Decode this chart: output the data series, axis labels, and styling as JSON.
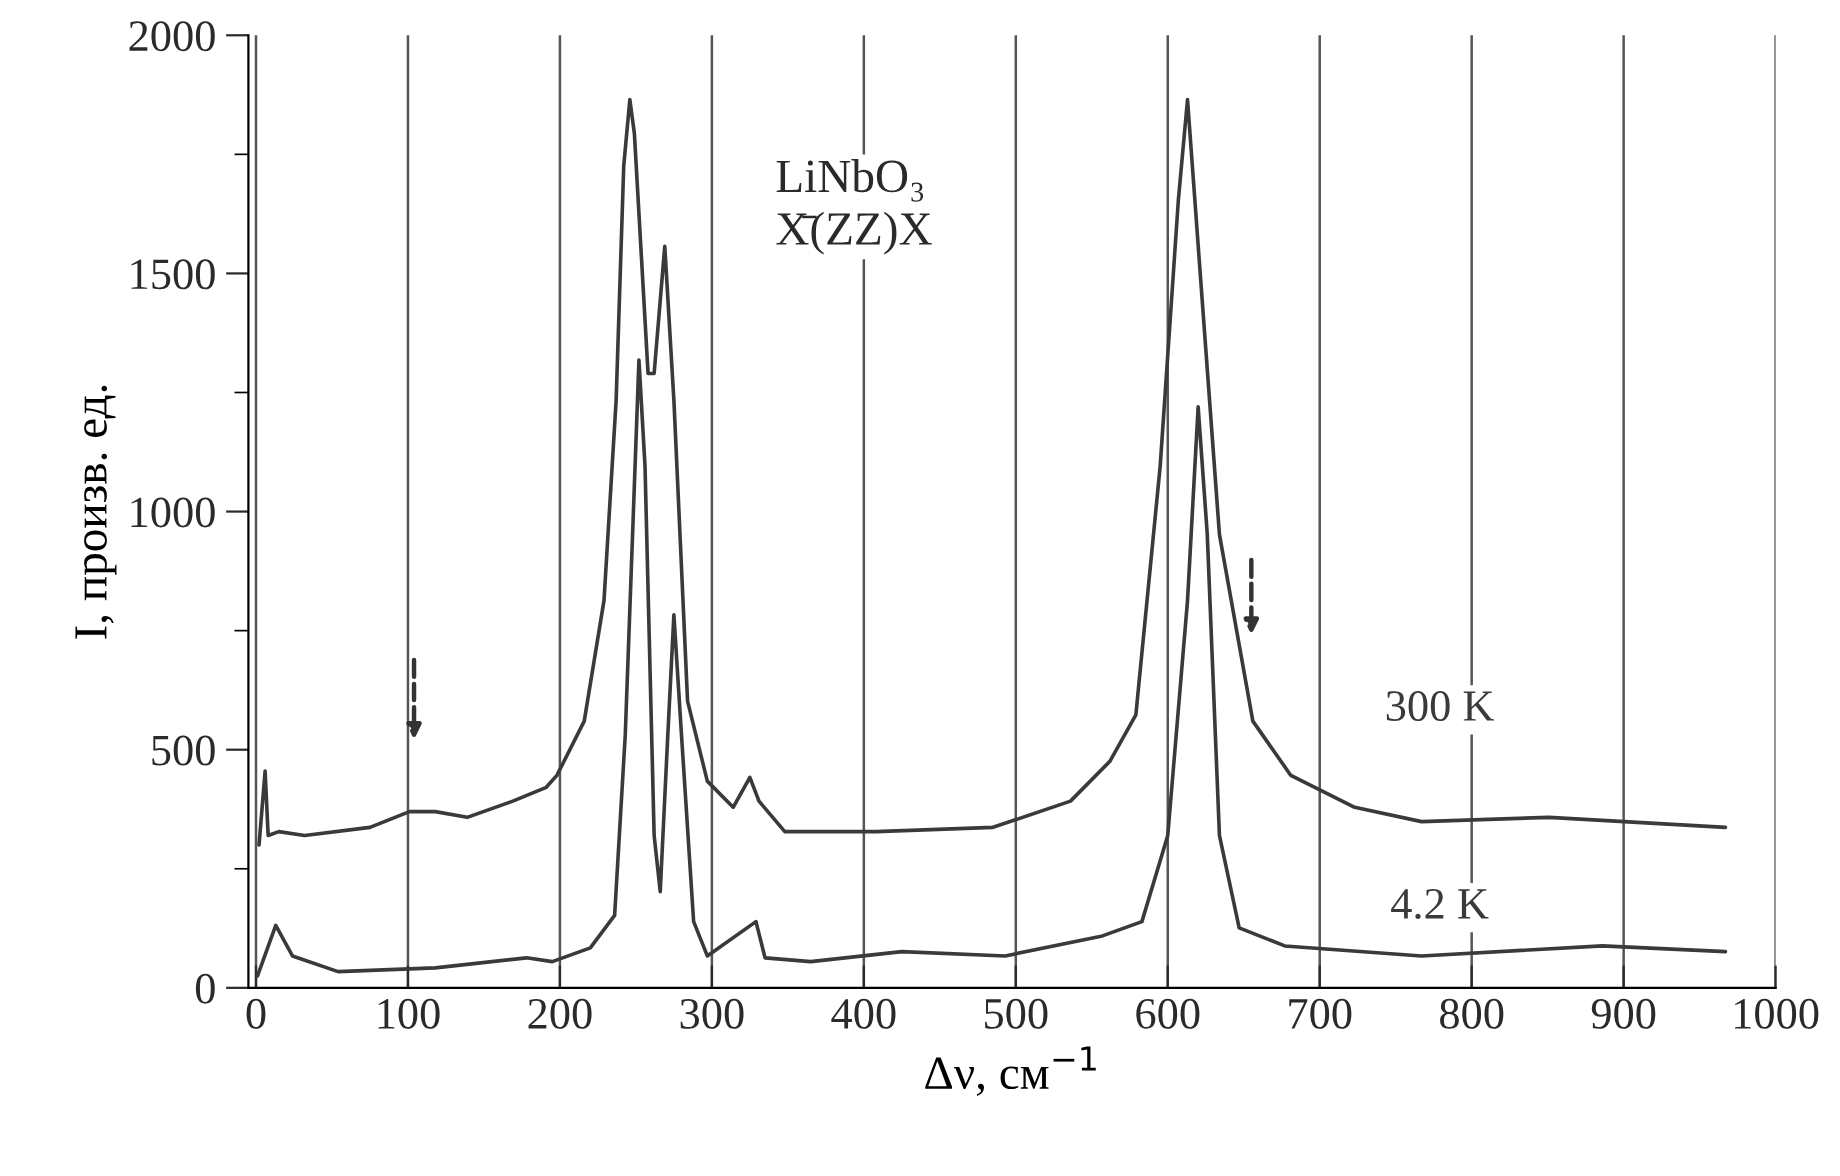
{
  "chart_data": {
    "type": "line",
    "xlabel": "Δν, см$^{−1}$",
    "ylabel": "I, произв. ед.",
    "annotations": [
      "LiNbO₃\nX̄(ZZ)X"
    ],
    "xlim": [
      -5,
      1000
    ],
    "ylim": [
      0,
      2000
    ],
    "xticks": [
      0,
      100,
      200,
      300,
      400,
      500,
      600,
      700,
      800,
      900,
      1000
    ],
    "yticks": [
      0,
      {
        "value": 250,
        "label": null
      },
      500,
      {
        "value": 750,
        "label": null
      },
      1000,
      {
        "value": 1250,
        "label": null
      },
      1500,
      {
        "value": 1750,
        "label": null
      },
      2000
    ],
    "grid": "x",
    "line_style": "solid",
    "marker": "none",
    "series": [
      {
        "name": "300 K",
        "color": "#3a3a3a",
        "x": [
          2,
          6,
          8,
          15,
          32,
          75,
          101,
          118,
          139,
          169,
          191,
          198,
          216,
          229,
          237,
          242,
          246,
          249,
          258,
          262,
          269,
          275,
          284,
          297,
          314,
          325,
          331,
          348,
          408,
          485,
          536,
          562,
          579,
          595,
          607,
          613,
          621,
          634,
          656,
          681,
          723,
          767,
          851,
          967
        ],
        "values": [
          300,
          455,
          320,
          328,
          320,
          337,
          370,
          370,
          358,
          392,
          421,
          446,
          560,
          813,
          1234,
          1726,
          1865,
          1794,
          1290,
          1290,
          1557,
          1234,
          602,
          434,
          379,
          442,
          392,
          328,
          328,
          337,
          392,
          476,
          573,
          1095,
          1655,
          1865,
          1516,
          952,
          560,
          446,
          379,
          349,
          358,
          337
        ]
      },
      {
        "name": "4.2 K",
        "color": "#3a3a3a",
        "x": [
          1,
          13,
          24,
          54,
          118,
          178,
          195,
          220,
          236,
          243,
          252,
          256,
          262,
          266,
          271,
          275,
          280,
          288,
          297,
          329,
          335,
          365,
          425,
          493,
          557,
          583,
          600,
          613,
          620,
          626,
          634,
          647,
          677,
          767,
          886,
          967
        ],
        "values": [
          25,
          131,
          67,
          34,
          42,
          63,
          55,
          84,
          152,
          531,
          1318,
          1095,
          320,
          202,
          531,
          783,
          531,
          139,
          67,
          139,
          63,
          55,
          76,
          67,
          109,
          139,
          320,
          813,
          1220,
          952,
          320,
          126,
          88,
          67,
          88,
          76
        ]
      }
    ]
  }
}
